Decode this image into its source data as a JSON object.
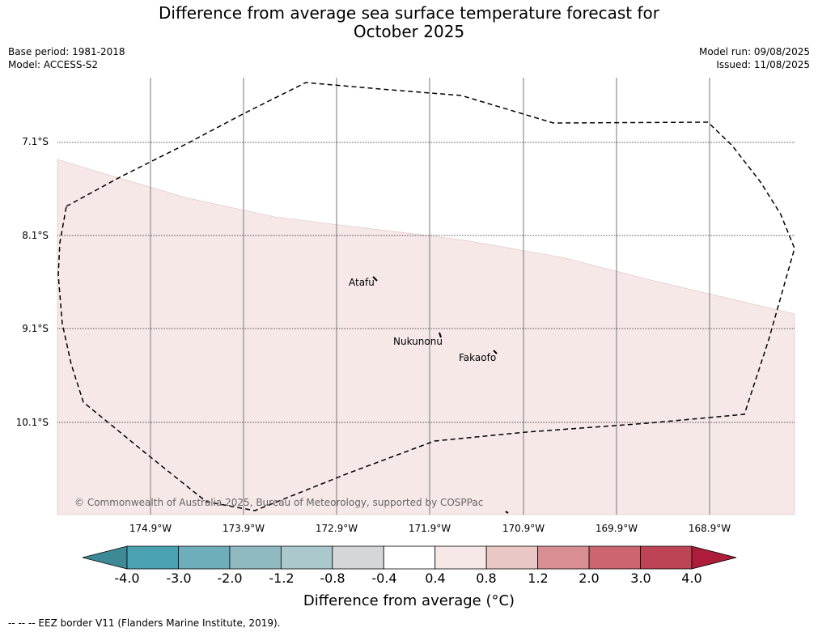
{
  "title_line1": "Difference from average sea surface temperature forecast for",
  "title_line2": "October 2025",
  "meta": {
    "base_period": "Base period: 1981-2018",
    "model": "Model: ACCESS-S2",
    "model_run": "Model run: 09/08/2025",
    "issued": "Issued: 11/08/2025"
  },
  "latitudes": [
    "7.1°S",
    "8.1°S",
    "9.1°S",
    "10.1°S"
  ],
  "longitudes": [
    "174.9°W",
    "173.9°W",
    "172.9°W",
    "171.9°W",
    "170.9°W",
    "169.9°W",
    "168.9°W"
  ],
  "islands": {
    "atafu": "Atafu",
    "nukunonu": "Nukunonu",
    "fakaofo": "Fakaofo"
  },
  "copyright": "© Commonwealth of Australia 2025, Bureau of Meteorology, supported by COSPPac",
  "colorbar": {
    "ticks": [
      "-4.0",
      "-3.0",
      "-2.0",
      "-1.2",
      "-0.8",
      "-0.4",
      "0.4",
      "0.8",
      "1.2",
      "2.0",
      "3.0",
      "4.0"
    ],
    "colors": [
      "#4aa2b2",
      "#6eaebb",
      "#8fbac2",
      "#abc8cc",
      "#d3d7d8",
      "#ffffff",
      "#f5e8e7",
      "#e8c7c4",
      "#d98e95",
      "#cc6570",
      "#bd4455"
    ],
    "under_color": "#3d8a96",
    "over_color": "#ad1d3b",
    "label": "Difference from average (°C)"
  },
  "map_fill_color": "#f5e8e7",
  "footnote": "--  --  -- EEZ border V11 (Flanders Marine Institute, 2019)."
}
